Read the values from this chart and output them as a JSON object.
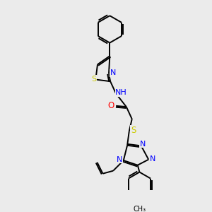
{
  "bg_color": "#ebebeb",
  "bond_color": "#000000",
  "N_color": "#0000ff",
  "S_color": "#cccc00",
  "S_thiazole_color": "#cccc00",
  "O_color": "#ff0000",
  "line_width": 1.4,
  "figsize": [
    3.0,
    3.0
  ],
  "dpi": 100,
  "xlim": [
    0,
    10
  ],
  "ylim": [
    0,
    10
  ]
}
